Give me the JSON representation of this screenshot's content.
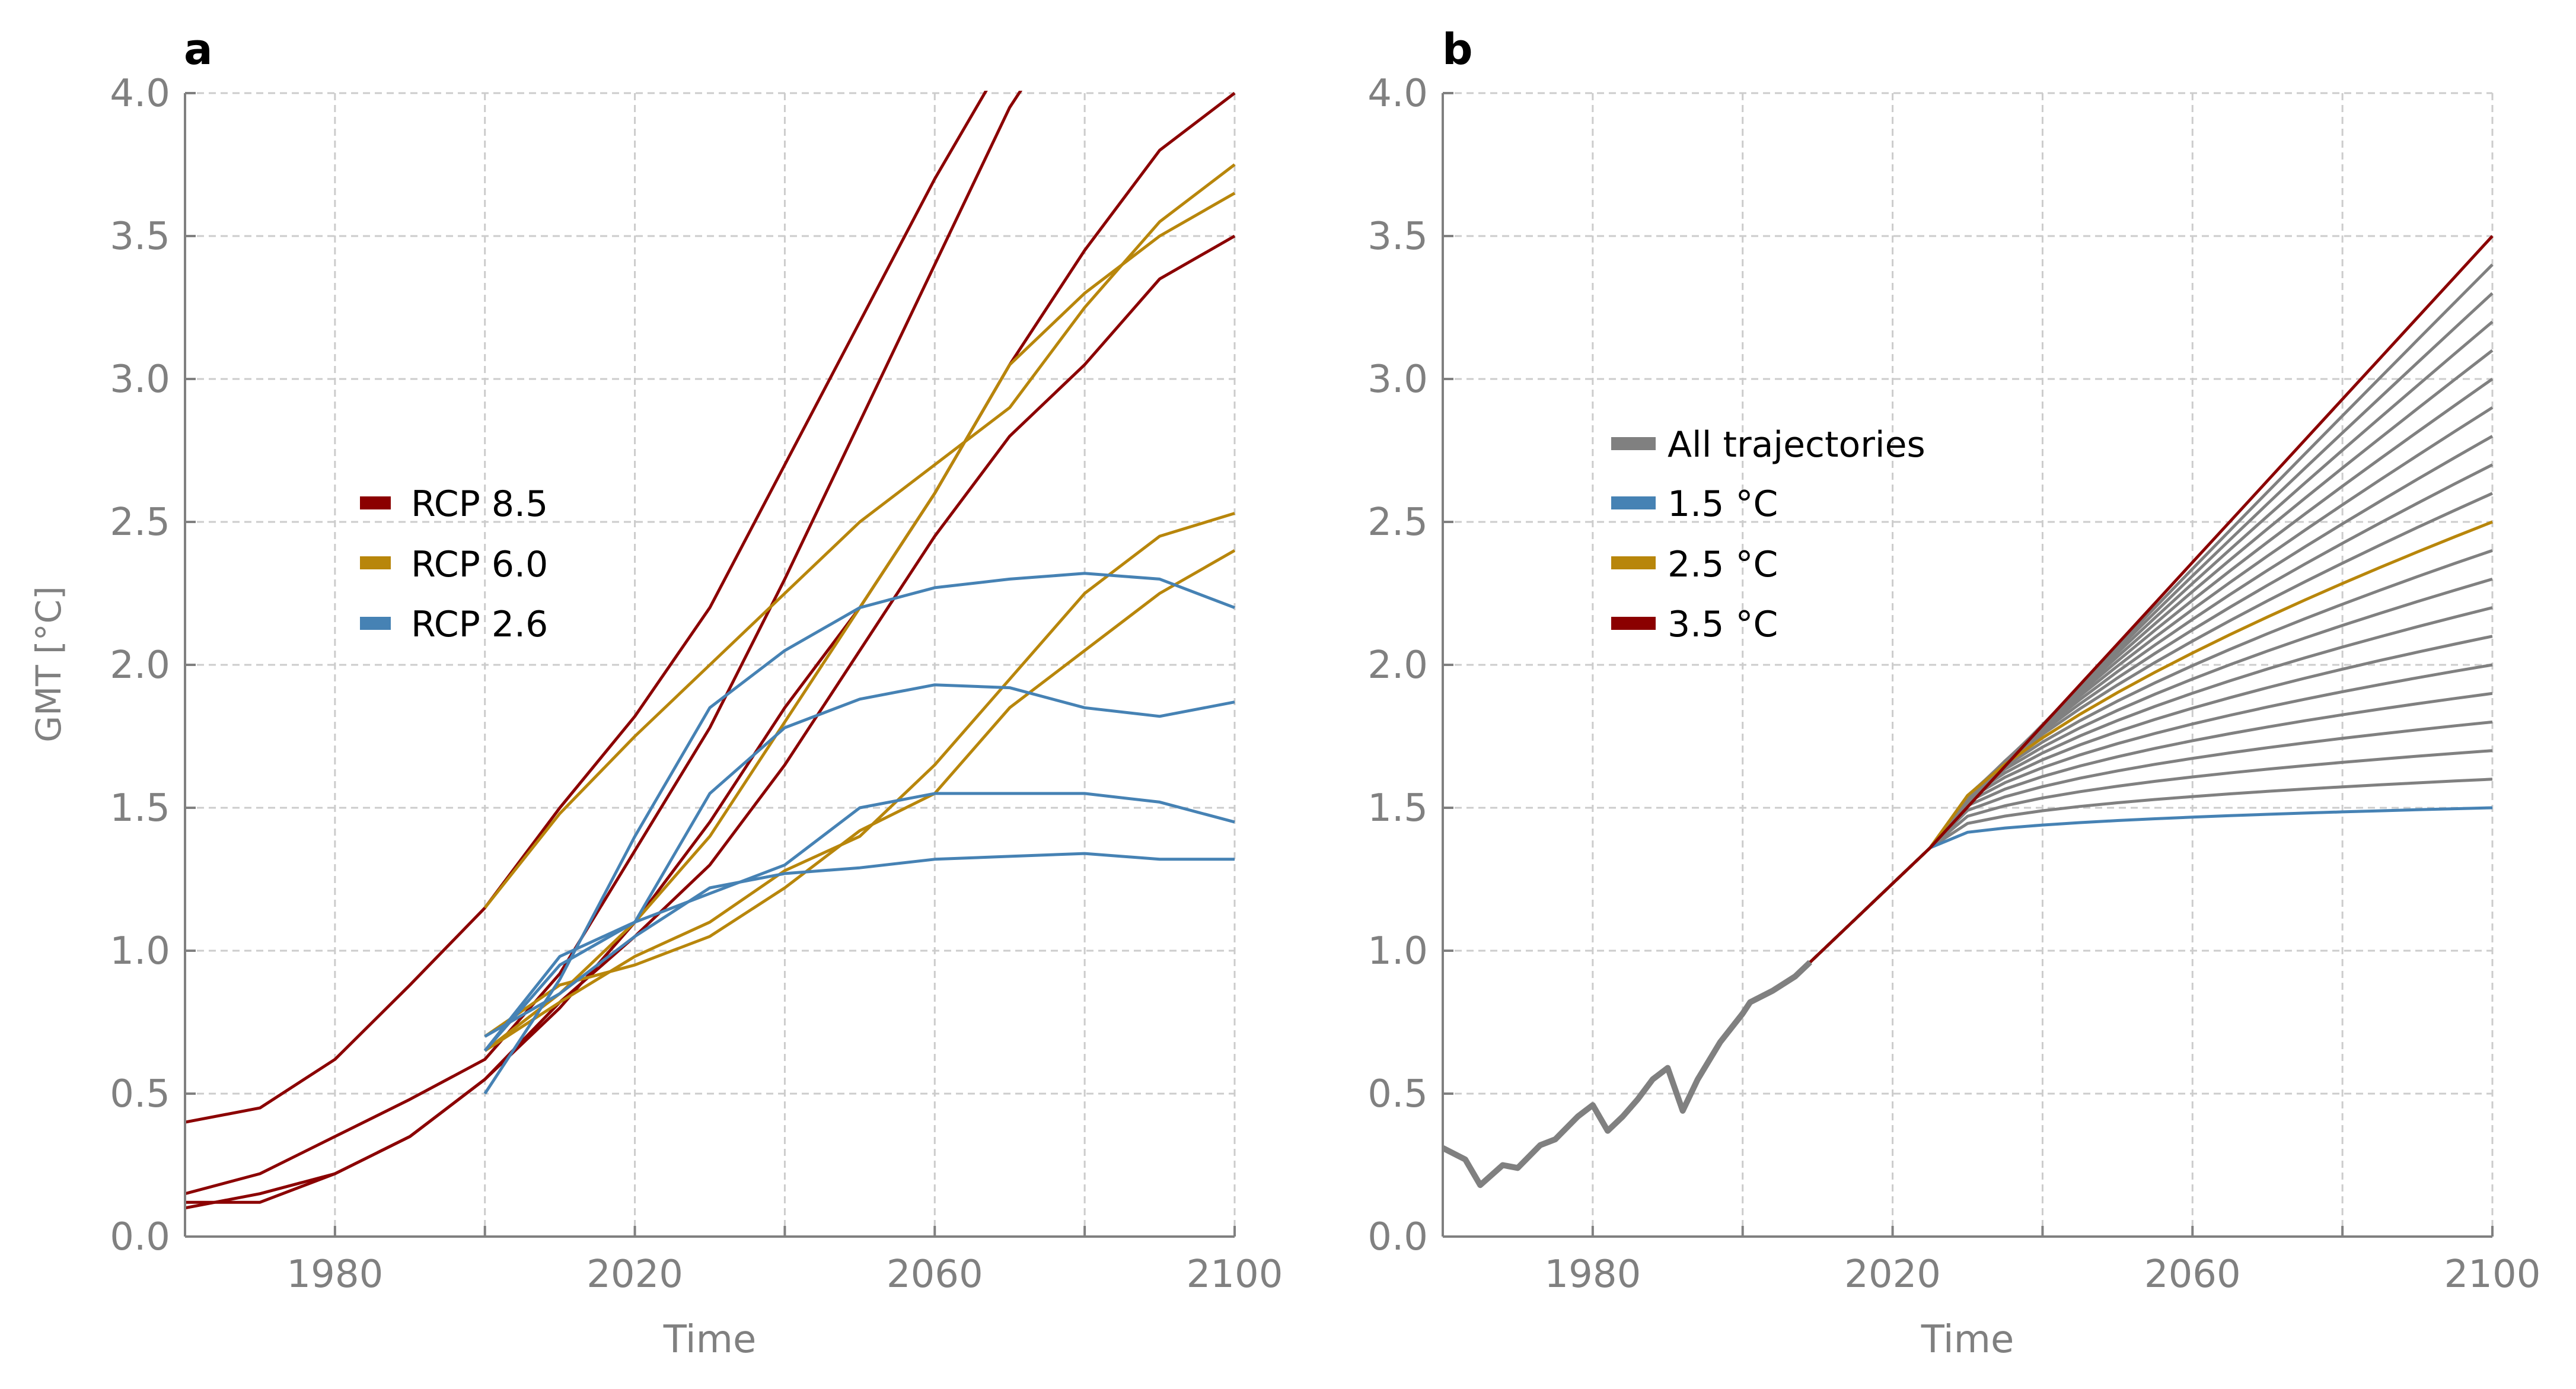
{
  "colors": {
    "rcp85": "#8b0000",
    "rcp60": "#b8860b",
    "rcp26": "#4682b4",
    "gray": "#808080",
    "grid": "#cccccc",
    "axis": "#808080"
  },
  "chart_data": [
    {
      "panel": "a",
      "type": "line",
      "xlabel": "Time",
      "ylabel": "GMT [°C]",
      "xlim": [
        1960,
        2100
      ],
      "ylim": [
        0,
        4.0
      ],
      "xticks": [
        1980,
        2020,
        2060,
        2100
      ],
      "yticks": [
        0.0,
        0.5,
        1.0,
        1.5,
        2.0,
        2.5,
        3.0,
        3.5,
        4.0
      ],
      "grid": true,
      "legend": {
        "placement": "center-left",
        "entries": [
          "RCP 8.5",
          "RCP 6.0",
          "RCP 2.6"
        ]
      },
      "series": [
        {
          "name": "RCP 8.5",
          "color_key": "rcp85",
          "x": [
            1960,
            1970,
            1980,
            1990,
            2000,
            2010,
            2020,
            2030,
            2040,
            2050,
            2060,
            2070
          ],
          "y": [
            0.4,
            0.45,
            0.62,
            0.88,
            1.15,
            1.5,
            1.82,
            2.2,
            2.7,
            3.2,
            3.7,
            4.15
          ]
        },
        {
          "name": "RCP 8.5",
          "color_key": "rcp85",
          "x": [
            1960,
            1970,
            1980,
            1990,
            2000,
            2010,
            2020,
            2030,
            2040,
            2050,
            2060,
            2070,
            2075
          ],
          "y": [
            0.15,
            0.22,
            0.35,
            0.48,
            0.62,
            0.92,
            1.35,
            1.78,
            2.3,
            2.85,
            3.4,
            3.95,
            4.15
          ]
        },
        {
          "name": "RCP 8.5",
          "color_key": "rcp85",
          "x": [
            1960,
            1970,
            1980,
            1990,
            2000,
            2010,
            2020,
            2030,
            2040,
            2050,
            2060,
            2070,
            2080,
            2090,
            2100
          ],
          "y": [
            0.12,
            0.12,
            0.22,
            0.35,
            0.55,
            0.8,
            1.1,
            1.45,
            1.85,
            2.2,
            2.6,
            3.05,
            3.45,
            3.8,
            4.0
          ]
        },
        {
          "name": "RCP 8.5",
          "color_key": "rcp85",
          "x": [
            1960,
            1970,
            1980,
            1990,
            2000,
            2010,
            2020,
            2030,
            2040,
            2050,
            2060,
            2070,
            2080,
            2090,
            2100
          ],
          "y": [
            0.1,
            0.15,
            0.22,
            0.35,
            0.55,
            0.82,
            1.05,
            1.3,
            1.65,
            2.05,
            2.45,
            2.8,
            3.05,
            3.35,
            3.5
          ]
        },
        {
          "name": "RCP 6.0",
          "color_key": "rcp60",
          "x": [
            2000,
            2010,
            2020,
            2030,
            2040,
            2050,
            2060,
            2070,
            2080,
            2090,
            2100
          ],
          "y": [
            1.15,
            1.48,
            1.75,
            2.0,
            2.25,
            2.5,
            2.7,
            2.9,
            3.25,
            3.55,
            3.75
          ]
        },
        {
          "name": "RCP 6.0",
          "color_key": "rcp60",
          "x": [
            2000,
            2010,
            2020,
            2030,
            2040,
            2050,
            2060,
            2070,
            2080,
            2090,
            2100
          ],
          "y": [
            0.65,
            0.85,
            1.1,
            1.4,
            1.8,
            2.2,
            2.6,
            3.05,
            3.3,
            3.5,
            3.65
          ]
        },
        {
          "name": "RCP 6.0",
          "color_key": "rcp60",
          "x": [
            2000,
            2010,
            2020,
            2030,
            2040,
            2050,
            2060,
            2070,
            2080,
            2090,
            2100
          ],
          "y": [
            0.65,
            0.82,
            0.98,
            1.1,
            1.28,
            1.4,
            1.65,
            1.95,
            2.25,
            2.45,
            2.53
          ]
        },
        {
          "name": "RCP 6.0",
          "color_key": "rcp60",
          "x": [
            2000,
            2010,
            2020,
            2030,
            2040,
            2050,
            2060,
            2070,
            2080,
            2090,
            2100
          ],
          "y": [
            0.7,
            0.88,
            0.95,
            1.05,
            1.22,
            1.42,
            1.55,
            1.85,
            2.05,
            2.25,
            2.4
          ]
        },
        {
          "name": "RCP 2.6",
          "color_key": "rcp26",
          "x": [
            2000,
            2010,
            2020,
            2030,
            2040,
            2050,
            2060,
            2070,
            2080,
            2090,
            2100
          ],
          "y": [
            0.5,
            0.9,
            1.4,
            1.85,
            2.05,
            2.2,
            2.27,
            2.3,
            2.32,
            2.3,
            2.2
          ]
        },
        {
          "name": "RCP 2.6",
          "color_key": "rcp26",
          "x": [
            2000,
            2010,
            2020,
            2030,
            2040,
            2050,
            2060,
            2070,
            2080,
            2090,
            2100
          ],
          "y": [
            0.65,
            0.95,
            1.1,
            1.55,
            1.78,
            1.88,
            1.93,
            1.92,
            1.85,
            1.82,
            1.87
          ]
        },
        {
          "name": "RCP 2.6",
          "color_key": "rcp26",
          "x": [
            2000,
            2010,
            2020,
            2030,
            2040,
            2050,
            2060,
            2070,
            2080,
            2090,
            2100
          ],
          "y": [
            0.65,
            0.98,
            1.1,
            1.2,
            1.3,
            1.5,
            1.55,
            1.55,
            1.55,
            1.52,
            1.45
          ]
        },
        {
          "name": "RCP 2.6",
          "color_key": "rcp26",
          "x": [
            2000,
            2010,
            2020,
            2030,
            2040,
            2050,
            2060,
            2070,
            2080,
            2090,
            2100
          ],
          "y": [
            0.7,
            0.85,
            1.05,
            1.22,
            1.27,
            1.29,
            1.32,
            1.33,
            1.34,
            1.32,
            1.32
          ]
        }
      ]
    },
    {
      "panel": "b",
      "type": "line",
      "xlabel": "Time",
      "xlim": [
        1960,
        2100
      ],
      "ylim": [
        0,
        4.0
      ],
      "xticks": [
        1980,
        2020,
        2060,
        2100
      ],
      "yticks": [
        0.0,
        0.5,
        1.0,
        1.5,
        2.0,
        2.5,
        3.0,
        3.5,
        4.0
      ],
      "grid": true,
      "legend": {
        "placement": "upper-left",
        "entries": [
          "All trajectories",
          "1.5 °C",
          "2.5 °C",
          "3.5 °C"
        ]
      },
      "historical": {
        "x": [
          1960,
          1963,
          1965,
          1968,
          1970,
          1973,
          1975,
          1978,
          1980,
          1982,
          1984,
          1986,
          1988,
          1990,
          1992,
          1994,
          1997,
          2000,
          2001,
          2004,
          2007,
          2009
        ],
        "y": [
          0.31,
          0.27,
          0.18,
          0.25,
          0.24,
          0.32,
          0.34,
          0.42,
          0.46,
          0.37,
          0.42,
          0.48,
          0.55,
          0.59,
          0.44,
          0.55,
          0.68,
          0.78,
          0.82,
          0.86,
          0.91,
          0.96
        ]
      },
      "trajectories": {
        "x": [
          2009,
          2015,
          2020,
          2025,
          2030,
          2035,
          2040,
          2045,
          2050,
          2055,
          2060,
          2065,
          2070,
          2075,
          2080,
          2085,
          2090,
          2095,
          2100
        ],
        "common": [
          0.96,
          1.1,
          1.2,
          1.32,
          1.42,
          null,
          null,
          null,
          null,
          null,
          null,
          null,
          null,
          null,
          null,
          null,
          null,
          null,
          null
        ],
        "targets": [
          1.5,
          1.6,
          1.7,
          1.8,
          1.9,
          2.0,
          2.1,
          2.2,
          2.3,
          2.4,
          2.5,
          2.6,
          2.7,
          2.8,
          2.9,
          3.0,
          3.1,
          3.2,
          3.3,
          3.4,
          3.5
        ]
      },
      "highlighted": [
        {
          "name": "1.5 °C",
          "color_key": "rcp26",
          "target": 1.5
        },
        {
          "name": "2.5 °C",
          "color_key": "rcp60",
          "target": 2.5
        },
        {
          "name": "3.5 °C",
          "color_key": "rcp85",
          "target": 3.5
        }
      ]
    }
  ],
  "labels": {
    "panel_a": "a",
    "panel_b": "b",
    "xlabel_a": "Time",
    "xlabel_b": "Time",
    "ylabel_a": "GMT [°C]",
    "legend_a": [
      "RCP 8.5",
      "RCP 6.0",
      "RCP 2.6"
    ],
    "legend_b": [
      "All trajectories",
      "1.5 °C",
      "2.5 °C",
      "3.5 °C"
    ],
    "yticklabels": [
      "0.0",
      "0.5",
      "1.0",
      "1.5",
      "2.0",
      "2.5",
      "3.0",
      "3.5",
      "4.0"
    ],
    "xticklabels": [
      "1980",
      "2020",
      "2060",
      "2100"
    ]
  }
}
